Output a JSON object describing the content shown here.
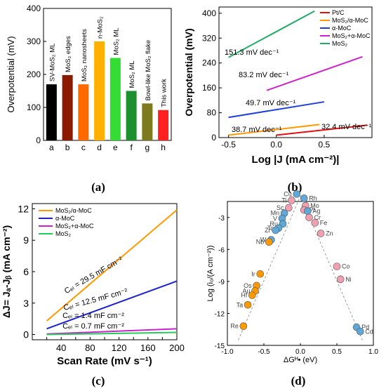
{
  "chart_data": [
    {
      "panel": "(a)",
      "type": "bar",
      "ylabel": "Overpotential (mV)",
      "ylim": [
        0,
        400
      ],
      "yticks": [
        0,
        100,
        200,
        300,
        400
      ],
      "categories": [
        "a",
        "b",
        "c",
        "d",
        "e",
        "f",
        "g",
        "h"
      ],
      "values": [
        170,
        198,
        170,
        300,
        250,
        150,
        112,
        92
      ],
      "bar_labels": [
        "SV-MoS₂ ML",
        "MoS₂ edges",
        "MoS₂ nanosheets",
        "n-MoS₂",
        "MoS₂ ML",
        "MoS₂ ML",
        "Bowl-like MoS₂ flake",
        "This work"
      ],
      "colors": [
        "#000000",
        "#8b1a00",
        "#ff6a00",
        "#ffb000",
        "#33dd33",
        "#1d8f2e",
        "#7d7a20",
        "#ff2020"
      ]
    },
    {
      "panel": "(b)",
      "type": "line",
      "xlabel": "Log |J (mA cm⁻²)|",
      "ylabel": "Overpotential (mV)",
      "xlim": [
        -0.6,
        1.0
      ],
      "ylim": [
        0,
        420
      ],
      "xticks": [
        -0.5,
        0.0,
        0.5
      ],
      "yticks": [
        0,
        80,
        160,
        240,
        320,
        400
      ],
      "series": [
        {
          "name": "Pt/C",
          "color": "#e01010",
          "x": [
            0.0,
            0.95
          ],
          "y": [
            8,
            40
          ],
          "slope_label": "32.4 mV dec⁻¹"
        },
        {
          "name": "MoS₂/α-MoC",
          "color": "#ff9900",
          "x": [
            -0.5,
            0.45
          ],
          "y": [
            8,
            42
          ],
          "slope_label": "38.7 mV dec⁻¹"
        },
        {
          "name": "α-MoC",
          "color": "#1f3fdd",
          "x": [
            -0.5,
            0.5
          ],
          "y": [
            65,
            115
          ],
          "slope_label": "49.7 mV dec⁻¹"
        },
        {
          "name": "MoS₂+α-MoC",
          "color": "#cc22cc",
          "x": [
            -0.1,
            0.9
          ],
          "y": [
            152,
            260
          ],
          "slope_label": "83.2 mV dec⁻¹"
        },
        {
          "name": "MoS₂",
          "color": "#22aa66",
          "x": [
            -0.5,
            0.4
          ],
          "y": [
            258,
            407
          ],
          "slope_label": "151.3 mV dec⁻¹"
        }
      ]
    },
    {
      "panel": "(c)",
      "type": "line",
      "xlabel": "Scan Rate (mV s⁻¹)",
      "ylabel": "ΔJ= Jₐ-Jᵦ (mA cm⁻²)",
      "xlim": [
        0,
        200
      ],
      "ylim": [
        -0.5,
        12.5
      ],
      "xticks": [
        20,
        40,
        60,
        80,
        100,
        120,
        140,
        160,
        180,
        200
      ],
      "yticks": [
        0,
        3,
        6,
        9,
        12
      ],
      "series": [
        {
          "name": "MoS₂/α-MoC",
          "color": "#ff9900",
          "x": [
            20,
            200
          ],
          "y": [
            1.3,
            11.9
          ],
          "cdl_label": "Cₑₗ = 29.5 mF cm⁻²"
        },
        {
          "name": "α-MoC",
          "color": "#1a22cc",
          "x": [
            20,
            200
          ],
          "y": [
            0.55,
            5.1
          ],
          "cdl_label": "Cₑₗ = 12.5 mF cm⁻²"
        },
        {
          "name": "MoS₂+α-MoC",
          "color": "#cc22cc",
          "x": [
            20,
            200
          ],
          "y": [
            0.05,
            0.55
          ],
          "cdl_label": "Cₑₗ = 1.4 mF cm⁻²"
        },
        {
          "name": "MoS₂",
          "color": "#22cc55",
          "x": [
            20,
            200
          ],
          "y": [
            0.0,
            0.2
          ],
          "cdl_label": "Cₑₗ = 0.7 mF cm⁻²"
        }
      ]
    },
    {
      "panel": "(d)",
      "type": "scatter",
      "xlabel": "ΔGᴴ• (eV)",
      "ylabel": "Log (i₀/(A cm⁻²))",
      "xlim": [
        -1.0,
        1.0
      ],
      "ylim": [
        -15,
        -1.5
      ],
      "xticks": [
        -1.0,
        -0.5,
        0.0,
        0.5,
        1.0
      ],
      "yticks": [
        -3,
        -6,
        -9,
        -12,
        -15
      ],
      "points": [
        {
          "label": "Cu",
          "x": -0.05,
          "y": -0.8,
          "color": "#5fa8d8"
        },
        {
          "label": "Rh",
          "x": 0.05,
          "y": -1.2,
          "color": "#5fa8d8"
        },
        {
          "label": "Ti",
          "x": -0.12,
          "y": -1.4,
          "color": "#f0a0b0"
        },
        {
          "label": "Mo",
          "x": 0.07,
          "y": -1.9,
          "color": "#f0a0b0"
        },
        {
          "label": "Sc",
          "x": -0.16,
          "y": -2.1,
          "color": "#f0a0b0"
        },
        {
          "label": "Pt",
          "x": 0.05,
          "y": -2.3,
          "color": "#f0a0b0"
        },
        {
          "label": "Ag",
          "x": 0.1,
          "y": -2.4,
          "color": "#5fa8d8"
        },
        {
          "label": "Mn",
          "x": -0.22,
          "y": -2.6,
          "color": "#5fa8d8"
        },
        {
          "label": "Cr",
          "x": 0.12,
          "y": -3.0,
          "color": "#f0a0b0"
        },
        {
          "label": "V",
          "x": -0.25,
          "y": -3.1,
          "color": "#5fa8d8"
        },
        {
          "label": "Ru",
          "x": -0.24,
          "y": -3.6,
          "color": "#5fa8d8"
        },
        {
          "label": "Fe",
          "x": 0.2,
          "y": -3.5,
          "color": "#f0a0b0"
        },
        {
          "label": "Tc",
          "x": -0.3,
          "y": -4.0,
          "color": "#5fa8d8"
        },
        {
          "label": "Zr",
          "x": -0.34,
          "y": -4.2,
          "color": "#5fa8d8"
        },
        {
          "label": "Zn",
          "x": 0.28,
          "y": -4.5,
          "color": "#f0a0b0"
        },
        {
          "label": "W",
          "x": -0.4,
          "y": -5.1,
          "color": "#5fa8d8"
        },
        {
          "label": "Nb",
          "x": -0.43,
          "y": -5.3,
          "color": "#ff9900"
        },
        {
          "label": "Co",
          "x": 0.5,
          "y": -7.6,
          "color": "#f0a0b0"
        },
        {
          "label": "Ir",
          "x": -0.55,
          "y": -8.3,
          "color": "#ff9900"
        },
        {
          "label": "Ni",
          "x": 0.55,
          "y": -8.8,
          "color": "#f0a0b0"
        },
        {
          "label": "Os",
          "x": -0.6,
          "y": -9.4,
          "color": "#ff9900"
        },
        {
          "label": "Au",
          "x": -0.62,
          "y": -9.9,
          "color": "#ff9900"
        },
        {
          "label": "Hf",
          "x": -0.66,
          "y": -10.3,
          "color": "#ff9900"
        },
        {
          "label": "Ta",
          "x": -0.72,
          "y": -11.2,
          "color": "#ff9900"
        },
        {
          "label": "Re",
          "x": -0.78,
          "y": -13.2,
          "color": "#ff9900"
        },
        {
          "label": "Pd",
          "x": 0.77,
          "y": -13.3,
          "color": "#5fa8d8"
        },
        {
          "label": "Cd",
          "x": 0.82,
          "y": -13.7,
          "color": "#5fa8d8"
        }
      ],
      "volcano": {
        "x": [
          -0.85,
          0.0,
          0.85
        ],
        "y": [
          -14.5,
          -1.0,
          -14.5
        ]
      }
    }
  ]
}
